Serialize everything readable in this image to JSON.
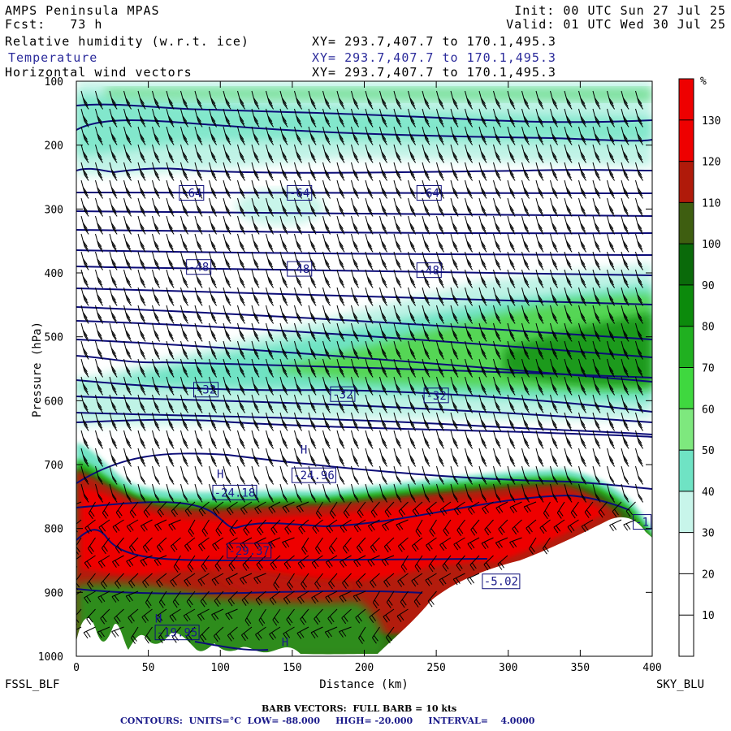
{
  "header": {
    "model": "AMPS Peninsula MPAS",
    "fcst": "Fcst:   73 h",
    "init": "Init: 00 UTC Sun 27 Jul 25",
    "valid": "Valid: 01 UTC Wed 30 Jul 25",
    "fields": [
      {
        "name": "Relative humidity (w.r.t. ice)",
        "xy": "XY= 293.7,407.7 to 170.1,495.3"
      },
      {
        "name": "Temperature",
        "xy": "XY= 293.7,407.7 to 170.1,495.3"
      },
      {
        "name": "Horizontal wind vectors",
        "xy": "XY= 293.7,407.7 to 170.1,495.3"
      }
    ]
  },
  "chart_data": {
    "type": "heatmap",
    "title": "Relative humidity (w.r.t. ice), Temperature, Horizontal wind vectors",
    "xlabel": "Distance (km)",
    "ylabel": "Pressure (hPa)",
    "xlim": [
      0,
      400
    ],
    "ylim": [
      1000,
      100
    ],
    "x_ticks": [
      0,
      50,
      100,
      150,
      200,
      250,
      300,
      350,
      400
    ],
    "y_ticks": [
      100,
      200,
      300,
      400,
      500,
      600,
      700,
      800,
      900,
      1000
    ],
    "endpoint_left": "FSSL_BLF",
    "endpoint_right": "SKY_BLU",
    "colorbar": {
      "unit": "%",
      "levels": [
        10,
        20,
        30,
        40,
        50,
        60,
        70,
        80,
        90,
        100,
        110,
        120,
        130
      ],
      "colors": [
        "#ffffff",
        "#ffffff",
        "#ffffff",
        "#c8f5ea",
        "#6fe3c4",
        "#7ee87e",
        "#3fd83f",
        "#20b020",
        "#0c8a0c",
        "#0a6a0a",
        "#3e5e10",
        "#b01a0a",
        "#ee0000",
        "#ee0000"
      ]
    },
    "temperature_labels": [
      {
        "text": "-64",
        "x": 80,
        "p": 276
      },
      {
        "text": "-64",
        "x": 155,
        "p": 276
      },
      {
        "text": "-64",
        "x": 245,
        "p": 276
      },
      {
        "text": "-48",
        "x": 85,
        "p": 392
      },
      {
        "text": "-48",
        "x": 155,
        "p": 395
      },
      {
        "text": "-48",
        "x": 245,
        "p": 397
      },
      {
        "text": "-32",
        "x": 90,
        "p": 584
      },
      {
        "text": "-32",
        "x": 185,
        "p": 591
      },
      {
        "text": "-32",
        "x": 250,
        "p": 593
      },
      {
        "text": "-29.37",
        "x": 120,
        "p": 836
      },
      {
        "text": "-24.18",
        "x": 110,
        "p": 745
      },
      {
        "text": "-24.96",
        "x": 165,
        "p": 718
      },
      {
        "text": "-19.95",
        "x": 70,
        "p": 964
      },
      {
        "text": "-5.02",
        "x": 295,
        "p": 884
      },
      {
        "text": "-1",
        "x": 393,
        "p": 791
      }
    ],
    "extrema_labels": [
      {
        "text": "H",
        "x": 100,
        "p": 721
      },
      {
        "text": "H",
        "x": 158,
        "p": 683
      },
      {
        "text": "H",
        "x": 57,
        "p": 947
      },
      {
        "text": "H",
        "x": 145,
        "p": 984
      }
    ],
    "footer": {
      "barbs": "BARB VECTORS:  FULL BARB = 10 kts",
      "contours": "CONTOURS:  UNITS=°C  LOW= -88.000     HIGH= -20.000     INTERVAL=    4.0000"
    }
  }
}
